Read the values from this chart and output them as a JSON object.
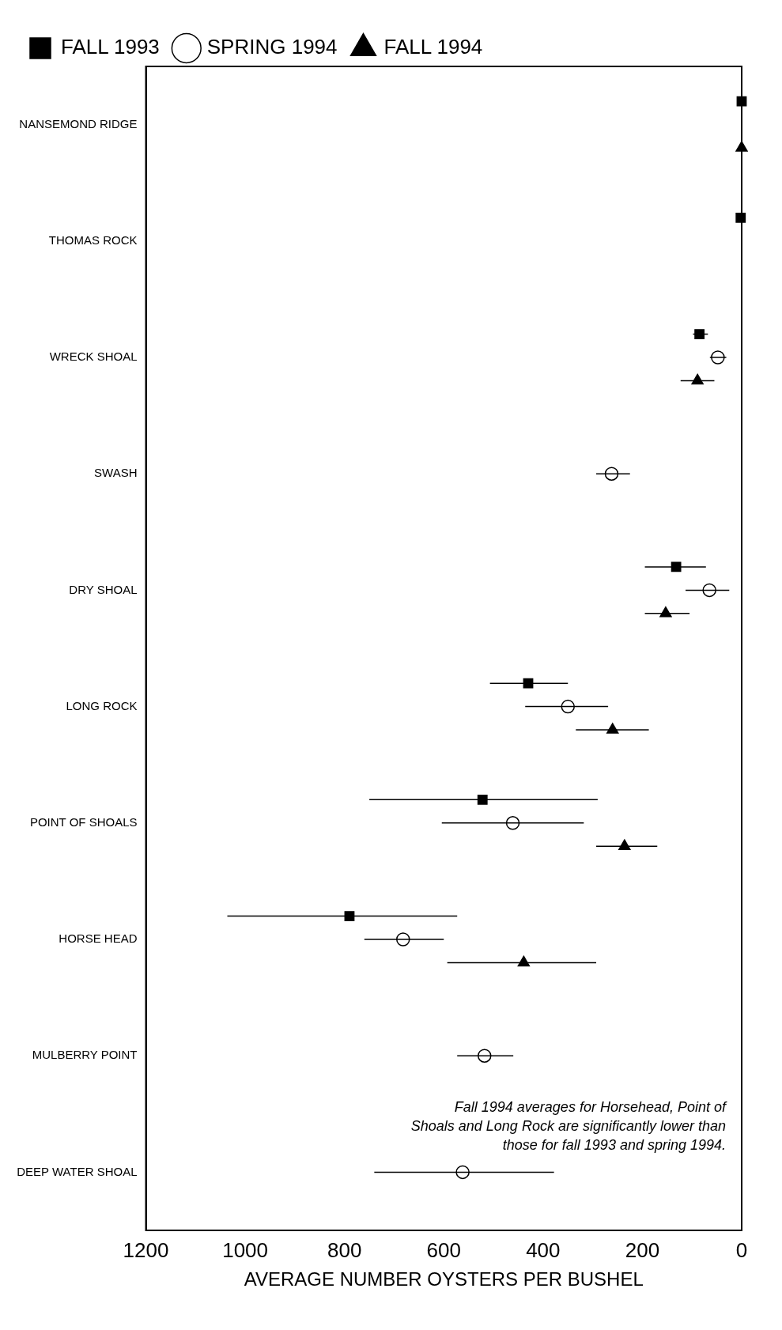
{
  "chart_data": {
    "type": "scatter",
    "orientation": "horizontal",
    "categories": [
      "NANSEMOND RIDGE",
      "THOMAS ROCK",
      "WRECK SHOAL",
      "SWASH",
      "DRY SHOAL",
      "LONG ROCK",
      "POINT OF SHOALS",
      "HORSE HEAD",
      "MULBERRY POINT",
      "DEEP WATER SHOAL"
    ],
    "series": [
      {
        "name": "FALL 1993",
        "color": "#000000",
        "marker": "square",
        "values": [
          0,
          2,
          85,
          null,
          132,
          430,
          522,
          790,
          null,
          null
        ],
        "errors": [
          null,
          null,
          [
            68,
            98
          ],
          null,
          [
            72,
            195
          ],
          [
            350,
            507
          ],
          [
            290,
            750
          ],
          [
            573,
            1036
          ],
          null,
          null
        ]
      },
      {
        "name": "SPRING 1994",
        "color": "#000000",
        "marker": "circle",
        "values": [
          null,
          null,
          48,
          262,
          65,
          350,
          461,
          682,
          518,
          562
        ],
        "errors": [
          null,
          null,
          [
            31,
            64
          ],
          [
            225,
            293
          ],
          [
            25,
            113
          ],
          [
            269,
            436
          ],
          [
            318,
            604
          ],
          [
            600,
            760
          ],
          [
            460,
            573
          ],
          [
            378,
            740
          ]
        ]
      },
      {
        "name": "FALL 1994",
        "color": "#000000",
        "marker": "triangle",
        "values": [
          0,
          null,
          89,
          null,
          153,
          260,
          236,
          439,
          null,
          null
        ],
        "errors": [
          null,
          null,
          [
            55,
            123
          ],
          null,
          [
            105,
            195
          ],
          [
            187,
            334
          ],
          [
            170,
            293
          ],
          [
            293,
            593
          ],
          null,
          null
        ]
      }
    ],
    "xlim": [
      1200,
      0
    ],
    "xticks": [
      1200,
      1000,
      800,
      600,
      400,
      200,
      0
    ],
    "xlabel": "AVERAGE NUMBER OYSTERS PER BUSHEL",
    "legend": "top left",
    "grid": false,
    "annotations": [
      "Fall 1994 averages for Horsehead, Point of Shoals and Long Rock are significantly lower than those for fall 1993 and spring 1994."
    ]
  }
}
